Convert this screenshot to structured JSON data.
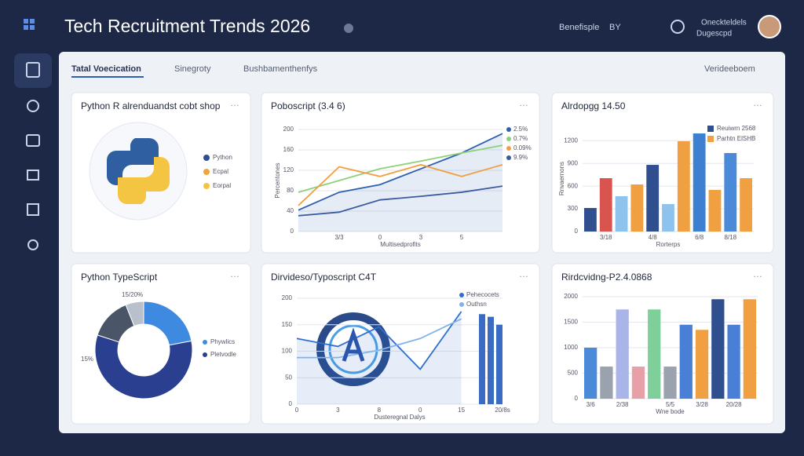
{
  "header": {
    "title": "Tech Recruitment Trends 2026",
    "links": [
      "Benefisple",
      "BY",
      "Oneckteldels",
      "Dugescpd"
    ]
  },
  "tabs": [
    "Tatal Voecication",
    "Sinegroty",
    "Bushbamenthenfys"
  ],
  "action": "Verideeboem",
  "chart_data": [
    {
      "type": "logo",
      "title": "Python R alrenduandst cobt shop",
      "legend": [
        {
          "name": "Python",
          "color": "#2f4f8f"
        },
        {
          "name": "Ecpal",
          "color": "#f0a53a"
        },
        {
          "name": "Eorpal",
          "color": "#f4c542"
        }
      ]
    },
    {
      "type": "line",
      "title": "Poboscript (3.4 6)",
      "y_label": "Percentones",
      "x_label": "Multisedprofits",
      "categories": [
        null,
        "3/3",
        "0",
        "3",
        "5",
        null
      ],
      "ylim": [
        0,
        200
      ],
      "yticks": [
        0,
        40,
        80,
        120,
        160,
        200
      ],
      "series": [
        {
          "name": "2.5%",
          "color": "#2f5fb0",
          "values": [
            42,
            77,
            92,
            123,
            154,
            192
          ]
        },
        {
          "name": "0.7%",
          "color": "#8ed07a",
          "values": [
            77,
            100,
            123,
            138,
            154,
            169
          ]
        },
        {
          "name": "0.09%",
          "color": "#f0a040",
          "values": [
            51,
            127,
            108,
            131,
            108,
            131
          ]
        },
        {
          "name": "9.9%",
          "color": "#3a5aa0",
          "values": [
            31,
            38,
            62,
            69,
            77,
            89
          ]
        }
      ]
    },
    {
      "type": "bar",
      "title": "Alrdopgg 14.50",
      "y_label": "Rnvaernons",
      "x_label": "Rorterps",
      "categories": [
        null,
        "3/18",
        null,
        null,
        "4/8",
        null,
        null,
        "6/8",
        null,
        "8/18",
        null
      ],
      "ylim": [
        0,
        1400
      ],
      "yticks": [
        0,
        300,
        600,
        900,
        1200
      ],
      "values": [
        311,
        705,
        467,
        622,
        881,
        363,
        1193,
        1296,
        550,
        1037,
        705
      ],
      "colors": [
        "#2f4f8f",
        "#d9534f",
        "#8ec3ee",
        "#f0a040",
        "#2f4f8f",
        "#8ec3ee",
        "#f0a040",
        "#3d7fd0",
        "#f0a040",
        "#4a8ad8",
        "#f0a040"
      ],
      "legend": [
        {
          "name": "Reuiwrn 2568",
          "color": "#2f4f8f"
        },
        {
          "name": "Parhtn ElSHB",
          "color": "#f0a040"
        }
      ]
    },
    {
      "type": "pie",
      "title": "Python TypeScript",
      "values": [
        22,
        58,
        14,
        6
      ],
      "colors": [
        "#3d8ae0",
        "#2a3f8f",
        "#4a5568",
        "#b8c0cc"
      ],
      "legend": [
        {
          "name": "Phywlics",
          "color": "#3d8ae0"
        },
        {
          "name": "Pletvodle",
          "color": "#2a3f8f"
        }
      ],
      "annotations": [
        "15/20%",
        "15%"
      ]
    },
    {
      "type": "line",
      "title": "Dirvideso/Typoscript C4T",
      "x_label": "Dusteregnal Dalys",
      "categories": [
        "0",
        "3",
        "8",
        "0",
        "15",
        "20/8s"
      ],
      "ylim": [
        0,
        200
      ],
      "yticks": [
        0,
        50,
        100,
        150,
        200
      ],
      "series": [
        {
          "name": "Pehecocets",
          "color": "#2f6fd0",
          "values": [
            124,
            109,
            146,
            66,
            175,
            null
          ]
        },
        {
          "name": "Outhsn",
          "color": "#7fb3ea",
          "values": [
            88,
            88,
            102,
            124,
            161,
            null
          ]
        }
      ],
      "bars": {
        "values": [
          170,
          165,
          150
        ],
        "color": "#3a6cc4"
      }
    },
    {
      "type": "bar",
      "title": "Rirdcvidng-P2.4.0868",
      "x_label": "Wne bode",
      "categories": [
        "3/6",
        null,
        "2/38",
        null,
        null,
        "5/5",
        null,
        "3/28",
        null,
        "20/28",
        null
      ],
      "ylim": [
        0,
        2000
      ],
      "yticks": [
        0,
        500,
        1000,
        1500,
        2000
      ],
      "values": [
        1000,
        630,
        1750,
        630,
        1750,
        630,
        1450,
        1350,
        1950,
        1450,
        1950
      ],
      "colors": [
        "#4a8ad8",
        "#9aa3ad",
        "#a9b4e8",
        "#e8a0a8",
        "#7fcf9a",
        "#9aa3ad",
        "#4a7fd8",
        "#f0a040",
        "#2f4f8f",
        "#4a7fd8",
        "#f0a040"
      ]
    }
  ]
}
